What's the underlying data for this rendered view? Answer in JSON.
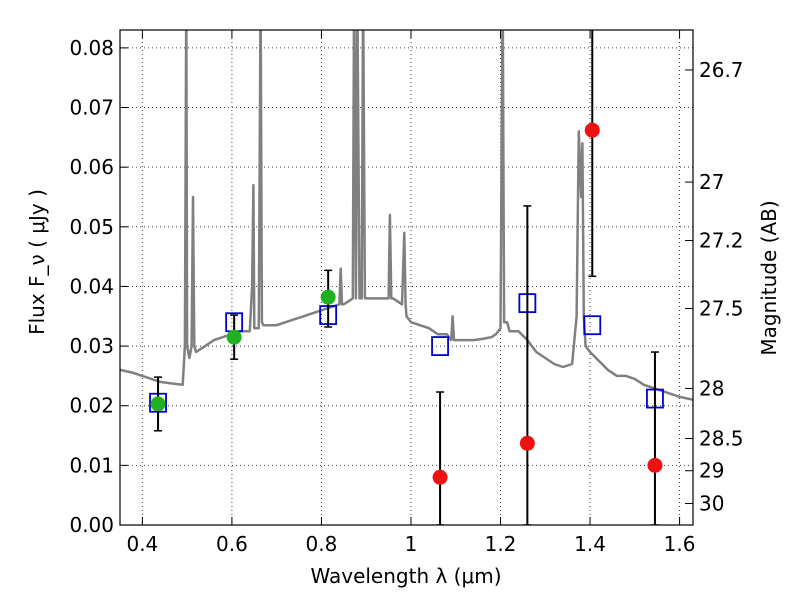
{
  "chart_data": {
    "type": "scatter",
    "title": "",
    "xlabel": "Wavelength λ (μm)",
    "ylabel": "Flux F_ν ( μJy )",
    "ylabel_right": "Magnitude (AB)",
    "xlim": [
      0.35,
      1.63
    ],
    "ylim": [
      0.0,
      0.083
    ],
    "grid": true,
    "x_ticks": [
      {
        "value": 0.4,
        "label": "0.4"
      },
      {
        "value": 0.6,
        "label": "0.6"
      },
      {
        "value": 0.8,
        "label": "0.8"
      },
      {
        "value": 1.0,
        "label": "1"
      },
      {
        "value": 1.2,
        "label": "1.2"
      },
      {
        "value": 1.4,
        "label": "1.4"
      },
      {
        "value": 1.6,
        "label": "1.6"
      }
    ],
    "y_ticks": [
      {
        "value": 0.0,
        "label": "0.00"
      },
      {
        "value": 0.01,
        "label": "0.01"
      },
      {
        "value": 0.02,
        "label": "0.02"
      },
      {
        "value": 0.03,
        "label": "0.03"
      },
      {
        "value": 0.04,
        "label": "0.04"
      },
      {
        "value": 0.05,
        "label": "0.05"
      },
      {
        "value": 0.06,
        "label": "0.06"
      },
      {
        "value": 0.07,
        "label": "0.07"
      },
      {
        "value": 0.08,
        "label": "0.08"
      }
    ],
    "right_ticks": [
      {
        "flux": 0.0763,
        "label": "26.7"
      },
      {
        "flux": 0.0575,
        "label": "27"
      },
      {
        "flux": 0.0477,
        "label": "27.2"
      },
      {
        "flux": 0.0363,
        "label": "27.5"
      },
      {
        "flux": 0.0229,
        "label": "28"
      },
      {
        "flux": 0.0145,
        "label": "28.5"
      },
      {
        "flux": 0.0091,
        "label": "29"
      },
      {
        "flux": 0.0036,
        "label": "30"
      }
    ],
    "series": [
      {
        "kind": "line",
        "color": "#808080",
        "x": [
          0.35,
          0.38,
          0.4,
          0.42,
          0.44,
          0.46,
          0.48,
          0.49,
          0.495,
          0.498,
          0.5,
          0.505,
          0.51,
          0.513,
          0.516,
          0.52,
          0.54,
          0.56,
          0.58,
          0.6,
          0.62,
          0.64,
          0.645,
          0.648,
          0.65,
          0.655,
          0.66,
          0.664,
          0.667,
          0.67,
          0.675,
          0.7,
          0.72,
          0.74,
          0.76,
          0.78,
          0.8,
          0.82,
          0.84,
          0.843,
          0.846,
          0.85,
          0.86,
          0.87,
          0.873,
          0.877,
          0.88,
          0.885,
          0.89,
          0.893,
          0.897,
          0.9,
          0.92,
          0.94,
          0.95,
          0.953,
          0.956,
          0.96,
          0.98,
          0.985,
          0.988,
          0.99,
          1.0,
          1.02,
          1.04,
          1.06,
          1.08,
          1.09,
          1.093,
          1.096,
          1.1,
          1.12,
          1.14,
          1.16,
          1.18,
          1.19,
          1.2,
          1.205,
          1.208,
          1.21,
          1.215,
          1.22,
          1.24,
          1.26,
          1.28,
          1.3,
          1.32,
          1.34,
          1.36,
          1.37,
          1.375,
          1.38,
          1.383,
          1.386,
          1.39,
          1.4,
          1.42,
          1.44,
          1.46,
          1.48,
          1.5,
          1.52,
          1.54,
          1.56,
          1.58,
          1.6,
          1.63
        ],
        "y": [
          0.026,
          0.0255,
          0.025,
          0.0245,
          0.024,
          0.0238,
          0.0236,
          0.0235,
          0.03,
          0.09,
          0.03,
          0.028,
          0.03,
          0.055,
          0.03,
          0.029,
          0.03,
          0.031,
          0.0315,
          0.032,
          0.0325,
          0.0325,
          0.04,
          0.057,
          0.033,
          0.033,
          0.033,
          0.09,
          0.034,
          0.0335,
          0.0335,
          0.0335,
          0.034,
          0.0345,
          0.035,
          0.0355,
          0.036,
          0.0365,
          0.037,
          0.043,
          0.037,
          0.037,
          0.0375,
          0.038,
          0.09,
          0.038,
          0.09,
          0.038,
          0.038,
          0.09,
          0.038,
          0.038,
          0.038,
          0.038,
          0.038,
          0.052,
          0.038,
          0.038,
          0.037,
          0.049,
          0.037,
          0.035,
          0.034,
          0.0335,
          0.033,
          0.032,
          0.032,
          0.031,
          0.035,
          0.031,
          0.031,
          0.031,
          0.031,
          0.0312,
          0.0315,
          0.032,
          0.033,
          0.09,
          0.034,
          0.034,
          0.034,
          0.0325,
          0.0325,
          0.031,
          0.029,
          0.028,
          0.027,
          0.0265,
          0.027,
          0.035,
          0.066,
          0.055,
          0.064,
          0.035,
          0.03,
          0.029,
          0.0275,
          0.026,
          0.025,
          0.025,
          0.0245,
          0.0235,
          0.023,
          0.0225,
          0.022,
          0.0215,
          0.021
        ]
      },
      {
        "kind": "open-square",
        "color": "#0000cc",
        "x": [
          0.435,
          0.605,
          0.815,
          1.065,
          1.26,
          1.405,
          1.545
        ],
        "y": [
          0.0205,
          0.034,
          0.0352,
          0.03,
          0.0372,
          0.0335,
          0.0212
        ]
      },
      {
        "kind": "filled-circle",
        "color": "#20b020",
        "x": [
          0.435,
          0.605,
          0.815
        ],
        "y": [
          0.0203,
          0.0315,
          0.0382
        ],
        "err_low": [
          0.0045,
          0.0037,
          0.005
        ],
        "err_high": [
          0.0045,
          0.0037,
          0.0045
        ]
      },
      {
        "kind": "filled-circle",
        "color": "#ee1111",
        "x": [
          1.065,
          1.26,
          1.405,
          1.545
        ],
        "y": [
          0.008,
          0.0137,
          0.0662,
          0.01
        ],
        "err_low": [
          0.008,
          0.0137,
          0.0245,
          0.01
        ],
        "err_high": [
          0.0143,
          0.0398,
          0.02,
          0.019
        ]
      }
    ]
  }
}
